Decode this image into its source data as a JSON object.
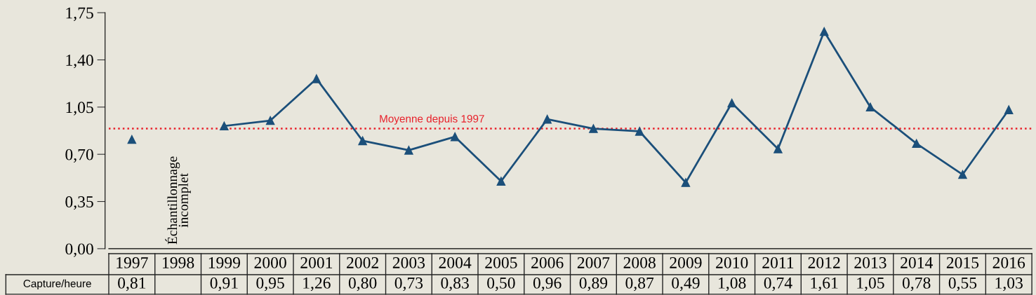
{
  "chart_data": {
    "type": "line",
    "categories": [
      "1997",
      "1998",
      "1999",
      "2000",
      "2001",
      "2002",
      "2003",
      "2004",
      "2005",
      "2006",
      "2007",
      "2008",
      "2009",
      "2010",
      "2011",
      "2012",
      "2013",
      "2014",
      "2015",
      "2016"
    ],
    "series": [
      {
        "color": "#1b4f7a",
        "values": [
          0.81,
          null,
          0.91,
          0.95,
          1.26,
          0.8,
          0.73,
          0.83,
          0.5,
          0.96,
          0.89,
          0.87,
          0.49,
          1.08,
          0.74,
          1.61,
          1.05,
          0.78,
          0.55,
          1.03
        ],
        "value_labels": [
          "0,81",
          null,
          "0,91",
          "0,95",
          "1,26",
          "0,80",
          "0,73",
          "0,83",
          "0,50",
          "0,96",
          "0,89",
          "0,87",
          "0,49",
          "1,08",
          "0,74",
          "1,61",
          "1,05",
          "0,78",
          "0,55",
          "1,03"
        ]
      }
    ],
    "marker": "triangle",
    "line_style": "solid",
    "ylim": [
      0,
      1.75
    ],
    "yticks": [
      {
        "value": 0,
        "label": "0,00"
      },
      {
        "value": 0.35,
        "label": "0,35"
      },
      {
        "value": 0.7,
        "label": "0,70"
      },
      {
        "value": 1.05,
        "label": "1,05"
      },
      {
        "value": 1.4,
        "label": "1,40"
      },
      {
        "value": 1.75,
        "label": "1,75"
      }
    ],
    "ref_lines": [
      {
        "axis": "y",
        "value": 0.89,
        "label": "Moyenne depuis 1997",
        "color": "#e8202a",
        "line_style": "dotted"
      }
    ],
    "annotations": [
      "Échantillonnage\nincomplet",
      "Capture/heure"
    ]
  }
}
